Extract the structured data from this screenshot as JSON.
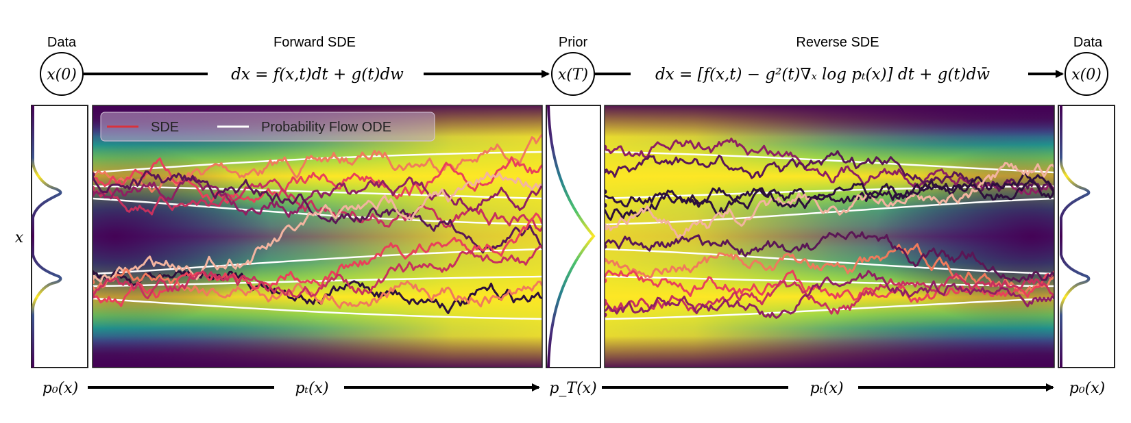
{
  "headers": {
    "data_left": "Data",
    "forward_sde": "Forward SDE",
    "prior": "Prior",
    "reverse_sde": "Reverse SDE",
    "data_right": "Data"
  },
  "nodes": {
    "x0_left": "x(0)",
    "xT": "x(T)",
    "x0_right": "x(0)"
  },
  "equations": {
    "forward": "dx = f(x,t)dt + g(t)dw",
    "reverse": "dx = [f(x,t) − g²(t)∇ₓ log pₜ(x)] dt + g(t)dw̄"
  },
  "legend": {
    "sde": "SDE",
    "ode": "Probability Flow ODE"
  },
  "axis_label": "x",
  "bottom_labels": {
    "p0_left": "p₀(x)",
    "pt_forward": "pₜ(x)",
    "pT": "p_T(x)",
    "pt_reverse": "pₜ(x)",
    "p0_right": "p₀(x)"
  },
  "colors": {
    "sde_legend": "#d9323c",
    "ode": "#ffffff",
    "legend_bg": "#c0a8c8",
    "trajectories": [
      "#f07a5c",
      "#e9405a",
      "#c7305e",
      "#8e1f62",
      "#5a1655",
      "#2c0f3c",
      "#f3b4a0"
    ]
  }
}
